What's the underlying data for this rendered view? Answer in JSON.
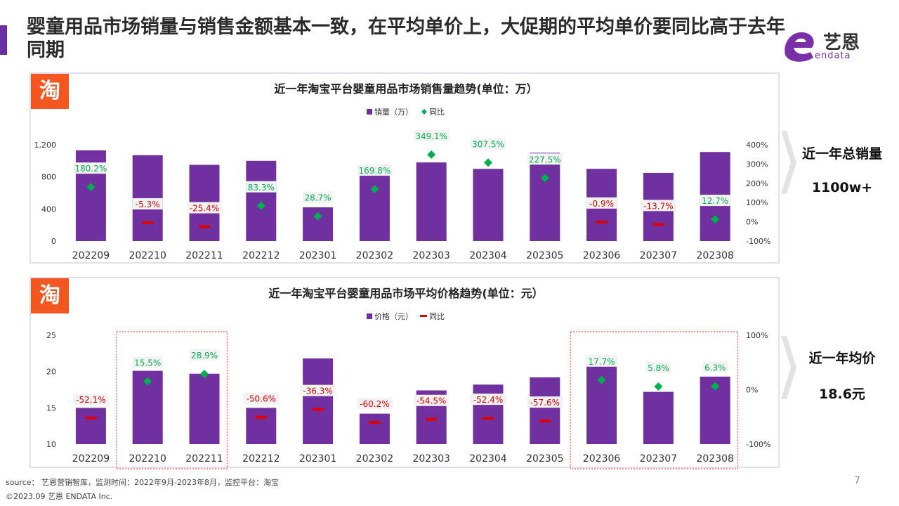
{
  "title": "婴童用品市场销量与销售金额基本一致，在平均单价上，大促期的平均单价要同比高于去年同期",
  "logo": {
    "name": "艺恩",
    "sub": "endata"
  },
  "side1": {
    "label": "近一年总销量",
    "value": "1100w+"
  },
  "side2": {
    "label": "近一年均价",
    "value": "18.6元"
  },
  "footer": {
    "source": "source： 艺恩营销智库，监测时间：2022年9月-2023年8月，监控平台：淘宝",
    "copyright": "©2023.09  艺恩 ENDATA Inc.",
    "page": "7"
  },
  "colors": {
    "bar": "#7030a0",
    "yoy_green": "#00b050",
    "yoy_red": "#e00000",
    "taobao": "#f4561f"
  },
  "chart_data": [
    {
      "type": "bar",
      "icon": "淘",
      "title": "近一年淘宝平台婴童用品市场销售量趋势(单位：万）",
      "legend": [
        "销量（万）",
        "同比"
      ],
      "categories": [
        "202209",
        "202210",
        "202211",
        "202212",
        "202301",
        "202302",
        "202303",
        "202304",
        "202305",
        "202306",
        "202307",
        "202308"
      ],
      "series": [
        {
          "name": "销量（万）",
          "values": [
            1130,
            1070,
            950,
            1000,
            420,
            950,
            980,
            900,
            1100,
            900,
            850,
            1110
          ]
        },
        {
          "name": "同比",
          "values": [
            180.2,
            -5.3,
            -25.4,
            83.3,
            28.7,
            169.8,
            349.1,
            307.5,
            227.5,
            -0.9,
            -13.7,
            12.7
          ],
          "labels": [
            "180.2%",
            "-5.3%",
            "-25.4%",
            "83.3%",
            "28.7%",
            "169.8%",
            "349.1%",
            "307.5%",
            "227.5%",
            "-0.9%",
            "-13.7%",
            "12.7%"
          ]
        }
      ],
      "yleft": {
        "ticks": [
          "1,200",
          "800",
          "400",
          "0"
        ],
        "range": [
          0,
          1200
        ]
      },
      "yright": {
        "ticks": [
          "400%",
          "300%",
          "200%",
          "100%",
          "0%",
          "-100%"
        ],
        "range": [
          -100,
          400
        ]
      },
      "highlight_groups": []
    },
    {
      "type": "bar",
      "icon": "淘",
      "title": "近一年淘宝平台婴童用品市场平均价格趋势(单位：元）",
      "legend": [
        "价格（元）",
        "同比"
      ],
      "categories": [
        "202209",
        "202210",
        "202211",
        "202212",
        "202301",
        "202302",
        "202303",
        "202304",
        "202305",
        "202306",
        "202307",
        "202308"
      ],
      "series": [
        {
          "name": "价格（元）",
          "values": [
            15.0,
            20.1,
            19.7,
            15.0,
            21.8,
            14.2,
            17.4,
            18.2,
            19.2,
            22.2,
            17.2,
            19.3
          ]
        },
        {
          "name": "同比",
          "values": [
            -52.1,
            15.5,
            28.9,
            -50.6,
            -36.3,
            -60.2,
            -54.5,
            -52.4,
            -57.6,
            17.7,
            5.8,
            6.3
          ],
          "labels": [
            "-52.1%",
            "15.5%",
            "28.9%",
            "-50.6%",
            "-36.3%",
            "-60.2%",
            "-54.5%",
            "-52.4%",
            "-57.6%",
            "17.7%",
            "5.8%",
            "6.3%"
          ]
        }
      ],
      "yleft": {
        "ticks": [
          "25",
          "20",
          "15",
          "10"
        ],
        "range": [
          10,
          25
        ]
      },
      "yright": {
        "ticks": [
          "100%",
          "0%",
          "-100%"
        ],
        "range": [
          -100,
          100
        ]
      },
      "highlight_groups": [
        [
          1,
          2
        ],
        [
          9,
          11
        ]
      ]
    }
  ]
}
